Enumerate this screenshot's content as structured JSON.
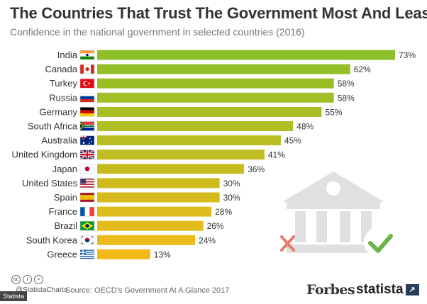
{
  "title": "The Countries That Trust The Government Most And Least",
  "subtitle": "Confidence in the national government in selected countries (2016)",
  "chart_data": {
    "type": "bar",
    "orientation": "horizontal",
    "categories": [
      "India",
      "Canada",
      "Turkey",
      "Russia",
      "Germany",
      "South Africa",
      "Australia",
      "United Kingdom",
      "Japan",
      "United States",
      "Spain",
      "France",
      "Brazil",
      "South Korea",
      "Greece"
    ],
    "values": [
      73,
      62,
      58,
      58,
      55,
      48,
      45,
      41,
      36,
      30,
      30,
      28,
      26,
      24,
      13
    ],
    "labels": [
      "73%",
      "62%",
      "58%",
      "58%",
      "55%",
      "48%",
      "45%",
      "41%",
      "36%",
      "30%",
      "30%",
      "28%",
      "26%",
      "24%",
      "13%"
    ],
    "xlim": [
      0,
      73
    ],
    "colors": {
      "high": "#8cbf2a",
      "low": "#f2ba18"
    },
    "grid": false,
    "legend": "none"
  },
  "footer": {
    "cc_badges": [
      "cc",
      "i",
      "="
    ],
    "handle": "@StatistaCharts",
    "source": "Source: OECD's Government At A Glance 2017",
    "brand_forbes": "Forbes",
    "brand_statista": "statista",
    "statista_mark": "↗",
    "watermark": "Statista"
  },
  "illustration": {
    "icons": [
      "government-building-icon",
      "cross-mark-icon",
      "check-mark-icon"
    ],
    "colors": {
      "building": "#e1e1e1",
      "cross": "#e87c68",
      "check": "#6bb24a"
    }
  }
}
